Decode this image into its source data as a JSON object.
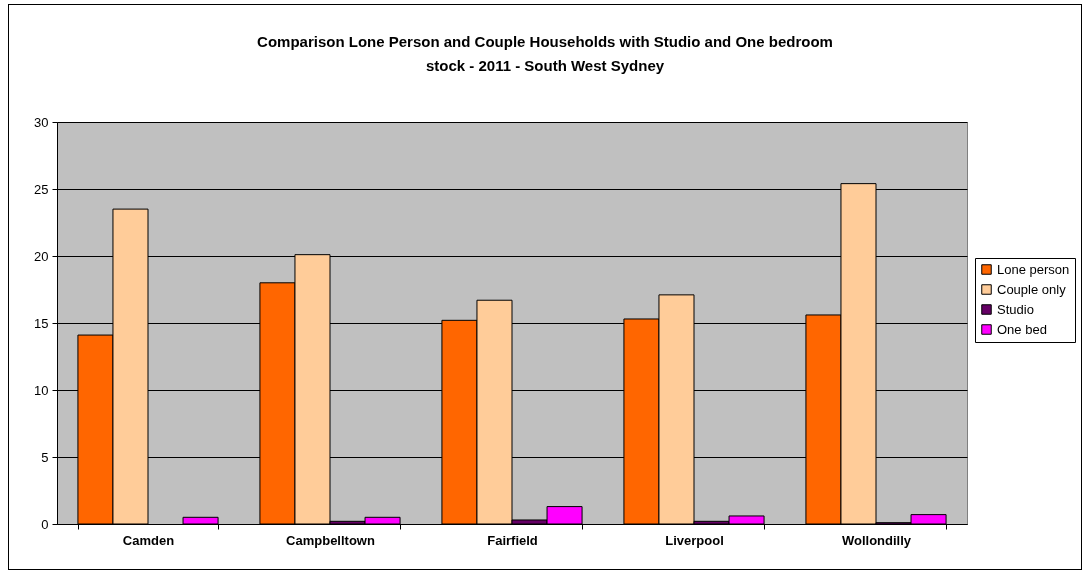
{
  "chart_data": {
    "type": "bar",
    "title": [
      "Comparison Lone Person and Couple Households with Studio and One bedroom",
      "stock - 2011 - South West Sydney"
    ],
    "categories": [
      "Camden",
      "Campbelltown",
      "Fairfield",
      "Liverpool",
      "Wollondilly"
    ],
    "series": [
      {
        "name": "Lone person",
        "color": "#ff6600",
        "values": [
          14.1,
          18.0,
          15.2,
          15.3,
          15.6
        ]
      },
      {
        "name": "Couple only",
        "color": "#ffcc99",
        "values": [
          23.5,
          20.1,
          16.7,
          17.1,
          25.4
        ]
      },
      {
        "name": "Studio",
        "color": "#660066",
        "values": [
          null,
          0.2,
          0.3,
          0.2,
          0.1
        ]
      },
      {
        "name": "One bed",
        "color": "#ff00ff",
        "values": [
          0.5,
          0.5,
          1.3,
          0.6,
          0.7
        ]
      }
    ],
    "ylim": [
      0,
      30
    ],
    "yticks": [
      0,
      5,
      10,
      15,
      20,
      25,
      30
    ],
    "grid": "y",
    "legend": "right"
  }
}
